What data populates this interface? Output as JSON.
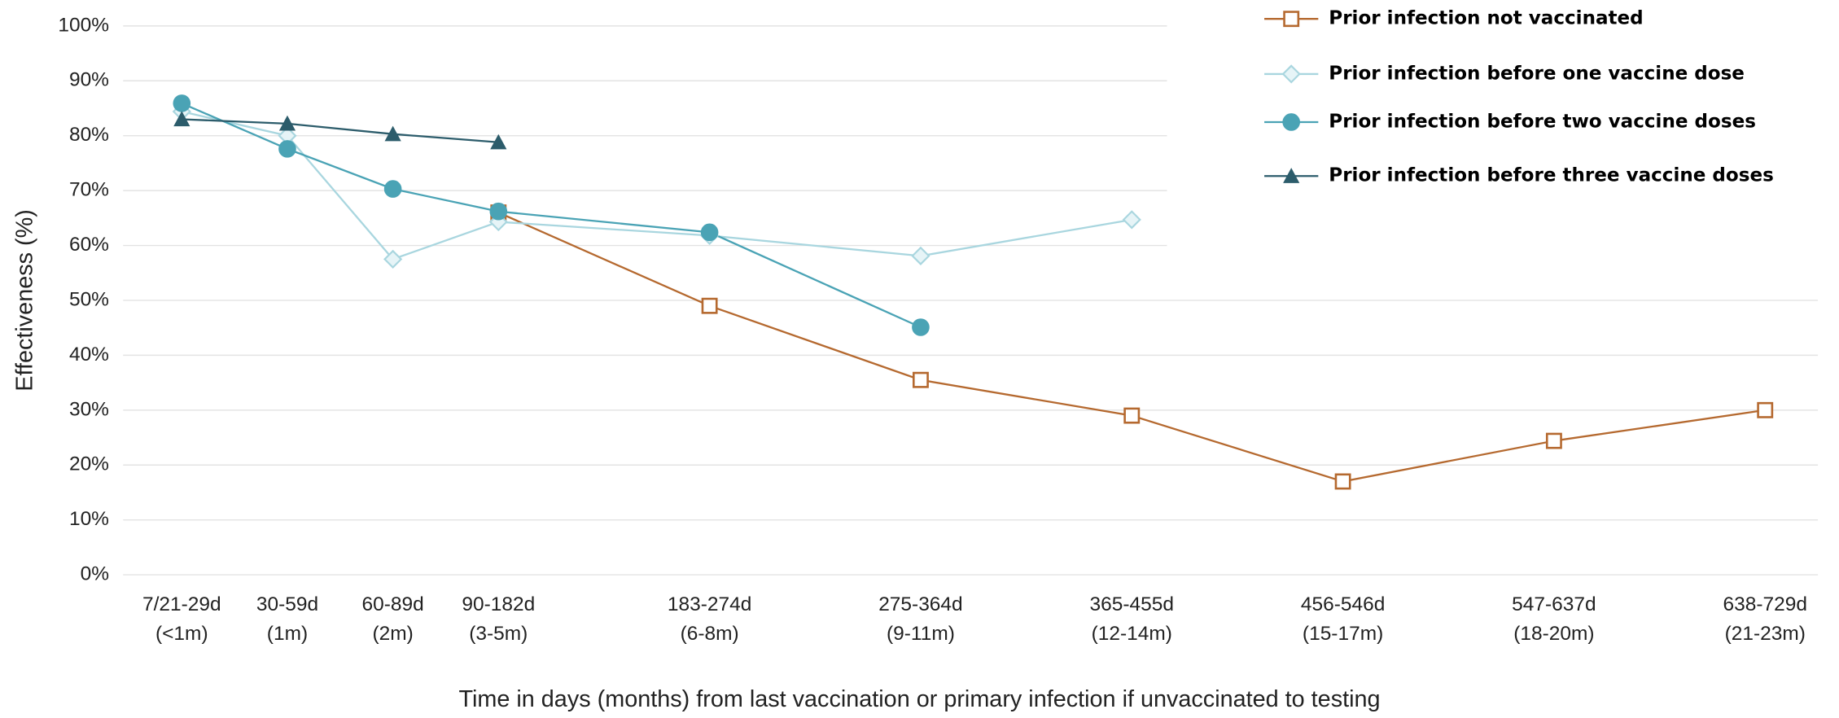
{
  "chart_data": {
    "type": "line",
    "y_label": "Effectiveness (%)",
    "x_label": "Time in days (months) from last vaccination or primary infection if unvaccinated  to testing",
    "categories": [
      [
        "7/21-29d",
        "(<1m)"
      ],
      [
        "30-59d",
        "(1m)"
      ],
      [
        "60-89d",
        "(2m)"
      ],
      [
        "90-182d",
        "(3-5m)"
      ],
      [
        "183-274d",
        "(6-8m)"
      ],
      [
        "275-364d",
        "(9-11m)"
      ],
      [
        "365-455d",
        "(12-14m)"
      ],
      [
        "456-546d",
        "(15-17m)"
      ],
      [
        "547-637d",
        "(18-20m)"
      ],
      [
        "638-729d",
        "(21-23m)"
      ]
    ],
    "series": [
      {
        "name": "Prior infection not vaccinated",
        "color": "#b5692f",
        "marker": "square",
        "values": [
          null,
          null,
          null,
          66,
          49,
          35.5,
          29,
          17,
          24.4,
          30
        ]
      },
      {
        "name": "Prior infection before one vaccine dose",
        "color": "#a9d6df",
        "marker": "diamond",
        "values": [
          84.4,
          80,
          57.5,
          64.3,
          61.8,
          58.1,
          64.7,
          null,
          null,
          null
        ]
      },
      {
        "name": "Prior infection before two vaccine doses",
        "color": "#4aa3b5",
        "marker": "circle",
        "values": [
          85.9,
          77.6,
          70.3,
          66.2,
          62.4,
          45.1,
          null,
          null,
          null,
          null
        ]
      },
      {
        "name": "Prior infection before three vaccine doses",
        "color": "#2c5c6b",
        "marker": "triangle",
        "values": [
          83,
          82.2,
          80.3,
          78.8,
          null,
          null,
          null,
          null,
          null,
          null
        ]
      }
    ],
    "ylim": [
      0,
      100
    ],
    "yticks": [
      {
        "value": 0,
        "label": "0%"
      },
      {
        "value": 10,
        "label": "10%"
      },
      {
        "value": 20,
        "label": "20%"
      },
      {
        "value": 30,
        "label": "30%"
      },
      {
        "value": 40,
        "label": "40%"
      },
      {
        "value": 50,
        "label": "50%"
      },
      {
        "value": 60,
        "label": "60%"
      },
      {
        "value": 70,
        "label": "70%"
      },
      {
        "value": 80,
        "label": "80%"
      },
      {
        "value": 90,
        "label": "90%"
      },
      {
        "value": 100,
        "label": "100%"
      }
    ],
    "grid": true,
    "legend": "top-right"
  }
}
